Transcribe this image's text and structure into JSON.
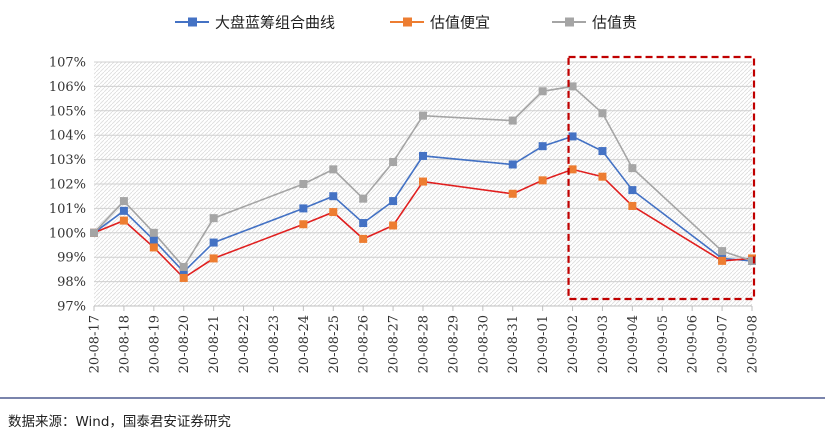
{
  "chart_data": {
    "type": "line",
    "categories": [
      "20-08-17",
      "20-08-18",
      "20-08-19",
      "20-08-20",
      "20-08-21",
      "20-08-22",
      "20-08-23",
      "20-08-24",
      "20-08-25",
      "20-08-26",
      "20-08-27",
      "20-08-28",
      "20-08-29",
      "20-08-30",
      "20-08-31",
      "20-09-01",
      "20-09-02",
      "20-09-03",
      "20-09-04",
      "20-09-05",
      "20-09-06",
      "20-09-07",
      "20-09-08"
    ],
    "yticks": [
      "97%",
      "98%",
      "99%",
      "100%",
      "101%",
      "102%",
      "103%",
      "104%",
      "105%",
      "106%",
      "107%"
    ],
    "ylim": [
      97,
      107
    ],
    "grid": true,
    "legend_position": "top",
    "highlight_range": [
      "20-09-02",
      "20-09-08"
    ],
    "series": [
      {
        "name": "大盘蓝筹组合曲线",
        "color": "#4472C4",
        "marker_color": "#4472C4",
        "values": [
          100.0,
          100.9,
          99.7,
          98.4,
          99.6,
          null,
          null,
          101.0,
          101.5,
          100.4,
          101.3,
          103.15,
          null,
          null,
          102.8,
          103.55,
          103.95,
          103.35,
          101.75,
          null,
          null,
          98.95,
          98.85
        ]
      },
      {
        "name": "估值便宜",
        "color": "#E02020",
        "marker_color": "#ED7D31",
        "values": [
          100.0,
          100.5,
          99.4,
          98.15,
          98.95,
          null,
          null,
          100.35,
          100.85,
          99.75,
          100.3,
          102.1,
          null,
          null,
          101.6,
          102.15,
          102.6,
          102.3,
          101.1,
          null,
          null,
          98.85,
          98.95
        ]
      },
      {
        "name": "估值贵",
        "color": "#A5A5A5",
        "marker_color": "#A5A5A5",
        "values": [
          100.0,
          101.3,
          100.0,
          98.6,
          100.6,
          null,
          null,
          102.0,
          102.6,
          101.4,
          102.9,
          104.8,
          null,
          null,
          104.6,
          105.8,
          106.0,
          104.9,
          102.65,
          null,
          null,
          99.25,
          98.85
        ]
      }
    ]
  },
  "source_text": "数据来源：Wind，国泰君安证券研究"
}
